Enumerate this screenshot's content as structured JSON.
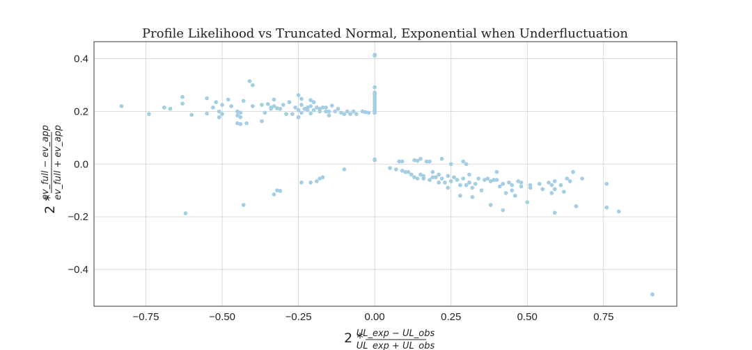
{
  "chart_data": {
    "type": "scatter",
    "title": "Profile Likelihood vs Truncated Normal, Exponential when Underfluctuation",
    "xlabel": {
      "prefix": "2 *",
      "numerator": "UL_exp − UL_obs",
      "denominator": "UL_exp + UL_obs"
    },
    "ylabel": {
      "prefix": "2 *",
      "numerator": "ev_full − ev_app",
      "denominator": "ev_full + ev_app"
    },
    "xlim": [
      -0.92,
      0.99
    ],
    "ylim": [
      -0.54,
      0.465
    ],
    "xticks": [
      -0.75,
      -0.5,
      -0.25,
      0.0,
      0.25,
      0.5,
      0.75
    ],
    "xtick_labels": [
      "−0.75",
      "−0.50",
      "−0.25",
      "0.00",
      "0.25",
      "0.50",
      "0.75"
    ],
    "yticks": [
      -0.4,
      -0.2,
      0.0,
      0.2,
      0.4
    ],
    "ytick_labels": [
      "−0.4",
      "−0.2",
      "0.0",
      "0.2",
      "0.4"
    ],
    "grid": true,
    "point_color": "#a6cee3",
    "points": [
      [
        -0.83,
        0.22
      ],
      [
        -0.74,
        0.19
      ],
      [
        -0.69,
        0.215
      ],
      [
        -0.67,
        0.21
      ],
      [
        -0.63,
        0.255
      ],
      [
        -0.63,
        0.23
      ],
      [
        -0.6,
        0.187
      ],
      [
        -0.55,
        0.25
      ],
      [
        -0.55,
        0.192
      ],
      [
        -0.53,
        0.215
      ],
      [
        -0.52,
        0.235
      ],
      [
        -0.51,
        0.2
      ],
      [
        -0.51,
        0.178
      ],
      [
        -0.5,
        0.225
      ],
      [
        -0.5,
        0.19
      ],
      [
        -0.48,
        0.245
      ],
      [
        -0.47,
        0.22
      ],
      [
        -0.45,
        0.2
      ],
      [
        -0.45,
        0.185
      ],
      [
        -0.45,
        0.155
      ],
      [
        -0.44,
        0.195
      ],
      [
        -0.44,
        0.178
      ],
      [
        -0.44,
        0.152
      ],
      [
        -0.43,
        0.24
      ],
      [
        -0.42,
        0.155
      ],
      [
        -0.41,
        0.315
      ],
      [
        -0.4,
        0.3
      ],
      [
        -0.4,
        0.22
      ],
      [
        -0.37,
        0.225
      ],
      [
        -0.37,
        0.163
      ],
      [
        -0.36,
        0.195
      ],
      [
        -0.35,
        0.228
      ],
      [
        -0.34,
        0.21
      ],
      [
        -0.34,
        0.215
      ],
      [
        -0.33,
        0.245
      ],
      [
        -0.33,
        0.22
      ],
      [
        -0.32,
        0.212
      ],
      [
        -0.31,
        0.21
      ],
      [
        -0.3,
        0.225
      ],
      [
        -0.29,
        0.19
      ],
      [
        -0.28,
        0.235
      ],
      [
        -0.27,
        0.19
      ],
      [
        -0.26,
        0.215
      ],
      [
        -0.25,
        0.262
      ],
      [
        -0.25,
        0.205
      ],
      [
        -0.25,
        0.178
      ],
      [
        -0.24,
        0.248
      ],
      [
        -0.24,
        0.225
      ],
      [
        -0.24,
        0.195
      ],
      [
        -0.23,
        0.21
      ],
      [
        -0.22,
        0.205
      ],
      [
        -0.22,
        0.215
      ],
      [
        -0.21,
        0.243
      ],
      [
        -0.21,
        0.22
      ],
      [
        -0.21,
        0.192
      ],
      [
        -0.2,
        0.235
      ],
      [
        -0.2,
        0.205
      ],
      [
        -0.19,
        0.215
      ],
      [
        -0.18,
        0.2
      ],
      [
        -0.18,
        0.21
      ],
      [
        -0.17,
        0.215
      ],
      [
        -0.16,
        0.2
      ],
      [
        -0.16,
        0.215
      ],
      [
        -0.15,
        0.2
      ],
      [
        -0.15,
        0.185
      ],
      [
        -0.14,
        0.222
      ],
      [
        -0.13,
        0.2
      ],
      [
        -0.12,
        0.21
      ],
      [
        -0.11,
        0.195
      ],
      [
        -0.1,
        0.19
      ],
      [
        -0.09,
        0.2
      ],
      [
        -0.08,
        0.19
      ],
      [
        -0.07,
        0.2
      ],
      [
        -0.06,
        0.19
      ],
      [
        -0.04,
        0.2
      ],
      [
        -0.03,
        0.197
      ],
      [
        -0.02,
        0.195
      ],
      [
        0.0,
        0.415
      ],
      [
        0.0,
        0.412
      ],
      [
        0.0,
        0.292
      ],
      [
        0.0,
        0.272
      ],
      [
        0.0,
        0.265
      ],
      [
        0.0,
        0.255
      ],
      [
        0.0,
        0.245
      ],
      [
        0.0,
        0.235
      ],
      [
        0.0,
        0.225
      ],
      [
        0.0,
        0.215
      ],
      [
        0.0,
        0.205
      ],
      [
        0.0,
        0.2
      ],
      [
        0.0,
        0.195
      ],
      [
        0.0,
        0.018
      ],
      [
        0.0,
        0.015
      ],
      [
        -0.62,
        -0.187
      ],
      [
        -0.43,
        -0.155
      ],
      [
        -0.33,
        -0.115
      ],
      [
        -0.32,
        -0.1
      ],
      [
        -0.31,
        -0.102
      ],
      [
        -0.24,
        -0.07
      ],
      [
        -0.21,
        -0.07
      ],
      [
        -0.19,
        -0.065
      ],
      [
        -0.18,
        -0.055
      ],
      [
        -0.17,
        -0.05
      ],
      [
        -0.1,
        -0.02
      ],
      [
        0.05,
        -0.015
      ],
      [
        0.07,
        -0.02
      ],
      [
        0.08,
        0.01
      ],
      [
        0.09,
        0.01
      ],
      [
        0.09,
        -0.025
      ],
      [
        0.1,
        -0.03
      ],
      [
        0.11,
        -0.03
      ],
      [
        0.12,
        -0.04
      ],
      [
        0.13,
        0.015
      ],
      [
        0.13,
        -0.05
      ],
      [
        0.14,
        -0.055
      ],
      [
        0.14,
        0.012
      ],
      [
        0.15,
        0.02
      ],
      [
        0.15,
        -0.04
      ],
      [
        0.16,
        -0.045
      ],
      [
        0.16,
        -0.055
      ],
      [
        0.17,
        0.01
      ],
      [
        0.18,
        0.01
      ],
      [
        0.18,
        -0.06
      ],
      [
        0.19,
        -0.03
      ],
      [
        0.19,
        -0.05
      ],
      [
        0.2,
        -0.05
      ],
      [
        0.21,
        -0.07
      ],
      [
        0.21,
        -0.04
      ],
      [
        0.22,
        0.02
      ],
      [
        0.22,
        -0.055
      ],
      [
        0.23,
        -0.07
      ],
      [
        0.24,
        -0.045
      ],
      [
        0.24,
        -0.09
      ],
      [
        0.25,
        -0.065
      ],
      [
        0.25,
        0.0
      ],
      [
        0.26,
        -0.05
      ],
      [
        0.27,
        -0.06
      ],
      [
        0.28,
        -0.08
      ],
      [
        0.28,
        -0.12
      ],
      [
        0.29,
        -0.055
      ],
      [
        0.29,
        0.01
      ],
      [
        0.3,
        0.0
      ],
      [
        0.3,
        -0.08
      ],
      [
        0.31,
        -0.04
      ],
      [
        0.31,
        -0.07
      ],
      [
        0.32,
        -0.125
      ],
      [
        0.32,
        -0.09
      ],
      [
        0.33,
        -0.075
      ],
      [
        0.34,
        -0.055
      ],
      [
        0.35,
        -0.1
      ],
      [
        0.36,
        -0.06
      ],
      [
        0.37,
        -0.055
      ],
      [
        0.38,
        -0.065
      ],
      [
        0.38,
        -0.155
      ],
      [
        0.39,
        -0.06
      ],
      [
        0.4,
        -0.03
      ],
      [
        0.4,
        -0.06
      ],
      [
        0.41,
        -0.085
      ],
      [
        0.42,
        -0.175
      ],
      [
        0.42,
        -0.075
      ],
      [
        0.43,
        -0.11
      ],
      [
        0.44,
        -0.07
      ],
      [
        0.45,
        -0.08
      ],
      [
        0.45,
        -0.1
      ],
      [
        0.46,
        -0.12
      ],
      [
        0.47,
        -0.065
      ],
      [
        0.48,
        -0.07
      ],
      [
        0.48,
        -0.085
      ],
      [
        0.5,
        -0.145
      ],
      [
        0.51,
        -0.08
      ],
      [
        0.51,
        -0.09
      ],
      [
        0.54,
        -0.075
      ],
      [
        0.55,
        -0.095
      ],
      [
        0.57,
        -0.07
      ],
      [
        0.58,
        -0.08
      ],
      [
        0.58,
        -0.11
      ],
      [
        0.59,
        -0.065
      ],
      [
        0.59,
        -0.095
      ],
      [
        0.59,
        -0.185
      ],
      [
        0.61,
        -0.08
      ],
      [
        0.62,
        -0.105
      ],
      [
        0.63,
        -0.055
      ],
      [
        0.64,
        -0.065
      ],
      [
        0.65,
        -0.03
      ],
      [
        0.66,
        -0.16
      ],
      [
        0.68,
        -0.055
      ],
      [
        0.76,
        -0.075
      ],
      [
        0.76,
        -0.165
      ],
      [
        0.8,
        -0.18
      ],
      [
        0.91,
        -0.495
      ]
    ]
  }
}
